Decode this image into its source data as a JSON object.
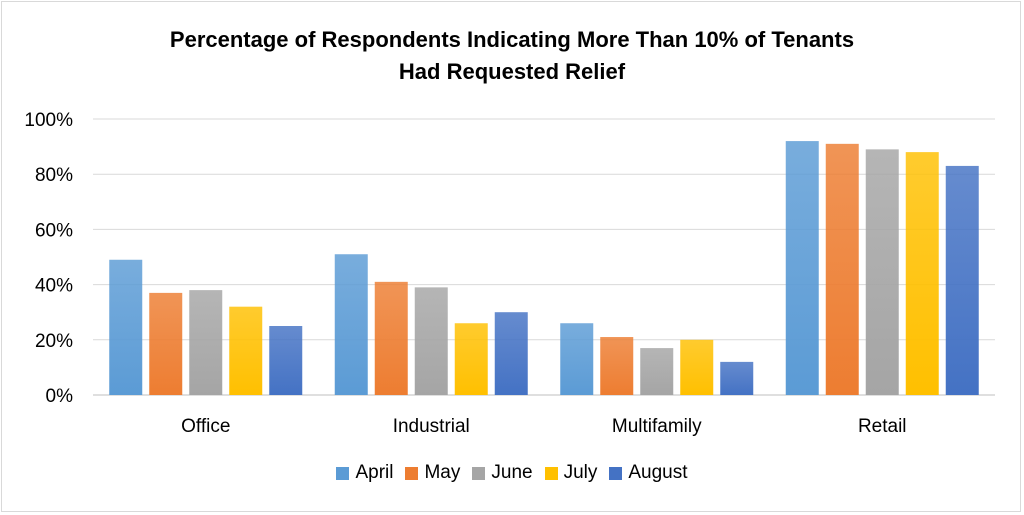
{
  "chart_data": {
    "type": "bar",
    "title_line1": "Percentage of Respondents Indicating More Than 10% of Tenants",
    "title_line2": "Had Requested Relief",
    "categories": [
      "Office",
      "Industrial",
      "Multifamily",
      "Retail"
    ],
    "series": [
      {
        "name": "April",
        "color": "#5b9bd5",
        "values": [
          49,
          51,
          26,
          92
        ]
      },
      {
        "name": "May",
        "color": "#ed7d31",
        "values": [
          37,
          41,
          21,
          91
        ]
      },
      {
        "name": "June",
        "color": "#a5a5a5",
        "values": [
          38,
          39,
          17,
          89
        ]
      },
      {
        "name": "July",
        "color": "#ffc000",
        "values": [
          32,
          26,
          20,
          88
        ]
      },
      {
        "name": "August",
        "color": "#4472c4",
        "values": [
          25,
          30,
          12,
          83
        ]
      }
    ],
    "y_ticks": [
      "0%",
      "20%",
      "40%",
      "60%",
      "80%",
      "100%"
    ],
    "ylim": [
      0,
      100
    ],
    "grid": true,
    "legend_position": "bottom"
  }
}
